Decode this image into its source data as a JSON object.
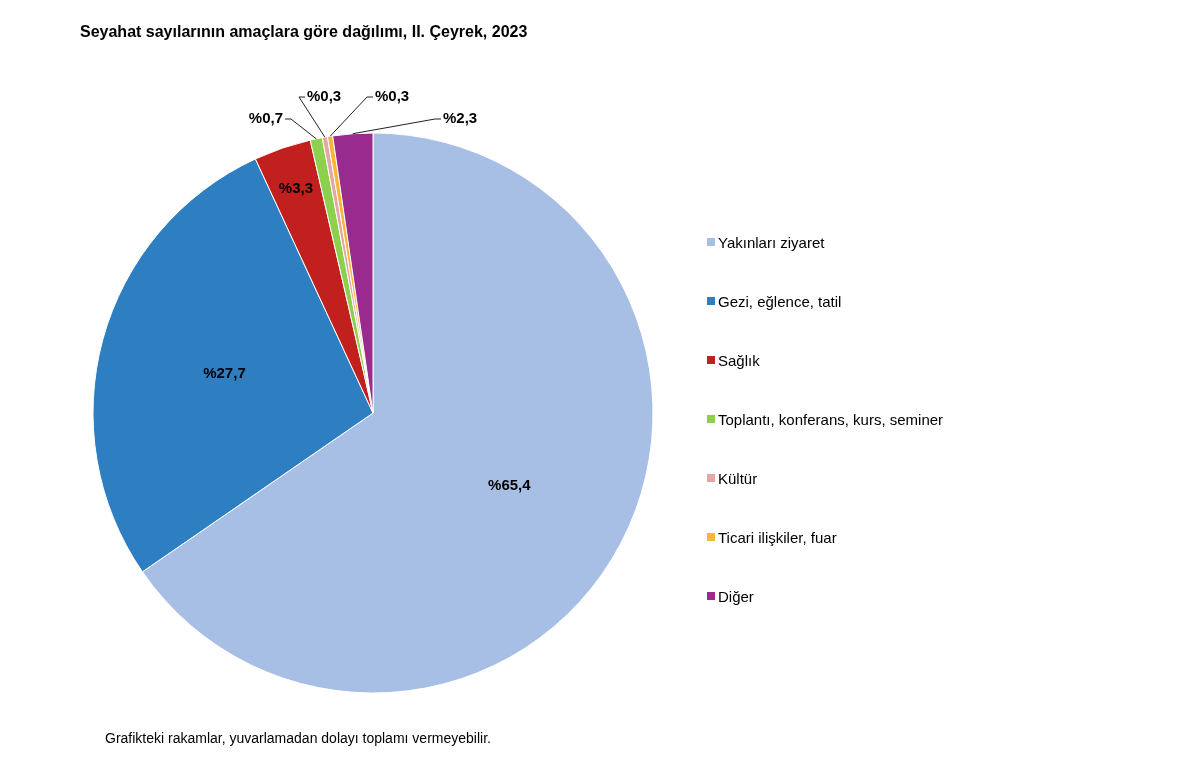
{
  "chart_data": {
    "type": "pie",
    "title": "Seyahat sayılarının amaçlara göre dağılımı, II. Çeyrek, 2023",
    "categories": [
      "Yakınları ziyaret",
      "Gezi, eğlence, tatil",
      "Sağlık",
      "Toplantı, konferans, kurs, seminer",
      "Kültür",
      "Ticari ilişkiler, fuar",
      "Diğer"
    ],
    "values": [
      65.4,
      27.7,
      3.3,
      0.7,
      0.3,
      0.3,
      2.3
    ],
    "value_labels": [
      "%65,4",
      "%27,7",
      "%3,3",
      "%0,7",
      "%0,3",
      "%0,3",
      "%2,3"
    ],
    "colors": [
      "#a7bfe5",
      "#2e7ec2",
      "#c21f1f",
      "#8dd04e",
      "#e6a6a6",
      "#f6b637",
      "#9a2b8e"
    ],
    "legend": "right",
    "annotations": [
      "Grafikteki rakamlar, yuvarlamadan dolayı toplamı vermeyebilir."
    ]
  }
}
